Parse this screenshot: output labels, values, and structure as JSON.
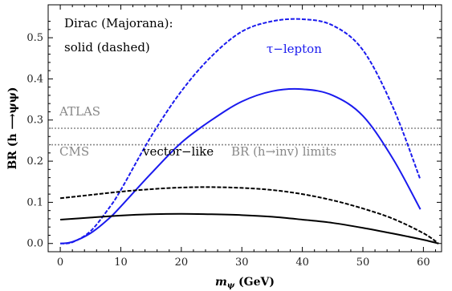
{
  "chart_data": {
    "type": "line",
    "xlabel": "m_ψ (GeV)",
    "ylabel": "BR (h ⟶ ψψ)",
    "xlim": [
      -2,
      63
    ],
    "ylim": [
      -0.02,
      0.58
    ],
    "xticks": [
      0,
      10,
      20,
      30,
      40,
      50,
      60
    ],
    "yticks": [
      0.0,
      0.1,
      0.2,
      0.3,
      0.4,
      0.5
    ],
    "xtick_labels": [
      "0",
      "10",
      "20",
      "30",
      "40",
      "50",
      "60"
    ],
    "ytick_labels": [
      "0.0",
      "0.1",
      "0.2",
      "0.3",
      "0.4",
      "0.5"
    ],
    "grid": false,
    "series": [
      {
        "group": "τ−lepton",
        "style": "dashed",
        "color": "#1a1aee",
        "x": [
          0,
          2,
          5,
          8,
          10,
          15,
          20,
          25,
          30,
          35,
          40,
          45,
          50,
          55,
          59.5
        ],
        "y": [
          0.0,
          0.003,
          0.03,
          0.085,
          0.13,
          0.26,
          0.37,
          0.455,
          0.515,
          0.54,
          0.545,
          0.53,
          0.47,
          0.33,
          0.155
        ]
      },
      {
        "group": "τ−lepton",
        "style": "solid",
        "color": "#1a1aee",
        "x": [
          0,
          2,
          5,
          8,
          10,
          15,
          20,
          25,
          30,
          35,
          40,
          45,
          50,
          55,
          59.5
        ],
        "y": [
          0.0,
          0.004,
          0.025,
          0.06,
          0.09,
          0.17,
          0.245,
          0.3,
          0.345,
          0.37,
          0.375,
          0.36,
          0.31,
          0.205,
          0.083
        ]
      },
      {
        "group": "vector−like",
        "style": "dashed",
        "color": "#000000",
        "x": [
          0,
          5,
          10,
          15,
          20,
          25,
          30,
          35,
          40,
          45,
          50,
          55,
          60,
          62.5
        ],
        "y": [
          0.11,
          0.118,
          0.126,
          0.132,
          0.136,
          0.137,
          0.135,
          0.13,
          0.12,
          0.105,
          0.085,
          0.06,
          0.025,
          0.0
        ]
      },
      {
        "group": "vector−like",
        "style": "solid",
        "color": "#000000",
        "x": [
          0,
          5,
          10,
          15,
          20,
          25,
          30,
          35,
          40,
          45,
          50,
          55,
          60,
          62.5
        ],
        "y": [
          0.058,
          0.063,
          0.068,
          0.071,
          0.072,
          0.071,
          0.069,
          0.065,
          0.058,
          0.05,
          0.038,
          0.024,
          0.009,
          0.0
        ]
      }
    ],
    "limits": [
      {
        "name": "ATLAS",
        "y": 0.28,
        "color": "#888888"
      },
      {
        "name": "CMS",
        "y": 0.24,
        "color": "#888888"
      }
    ],
    "annotations": {
      "legend_line1": "Dirac (Majorana):",
      "legend_line2": "solid (dashed)",
      "tau_label": "τ−lepton",
      "vector_label": "vector−like",
      "atlas_label": "ATLAS",
      "cms_label": "CMS",
      "limits_label": "BR (h→inv) limits"
    },
    "colors": {
      "tau": "#1a1aee",
      "vector": "#000000",
      "limits": "#888888"
    }
  }
}
